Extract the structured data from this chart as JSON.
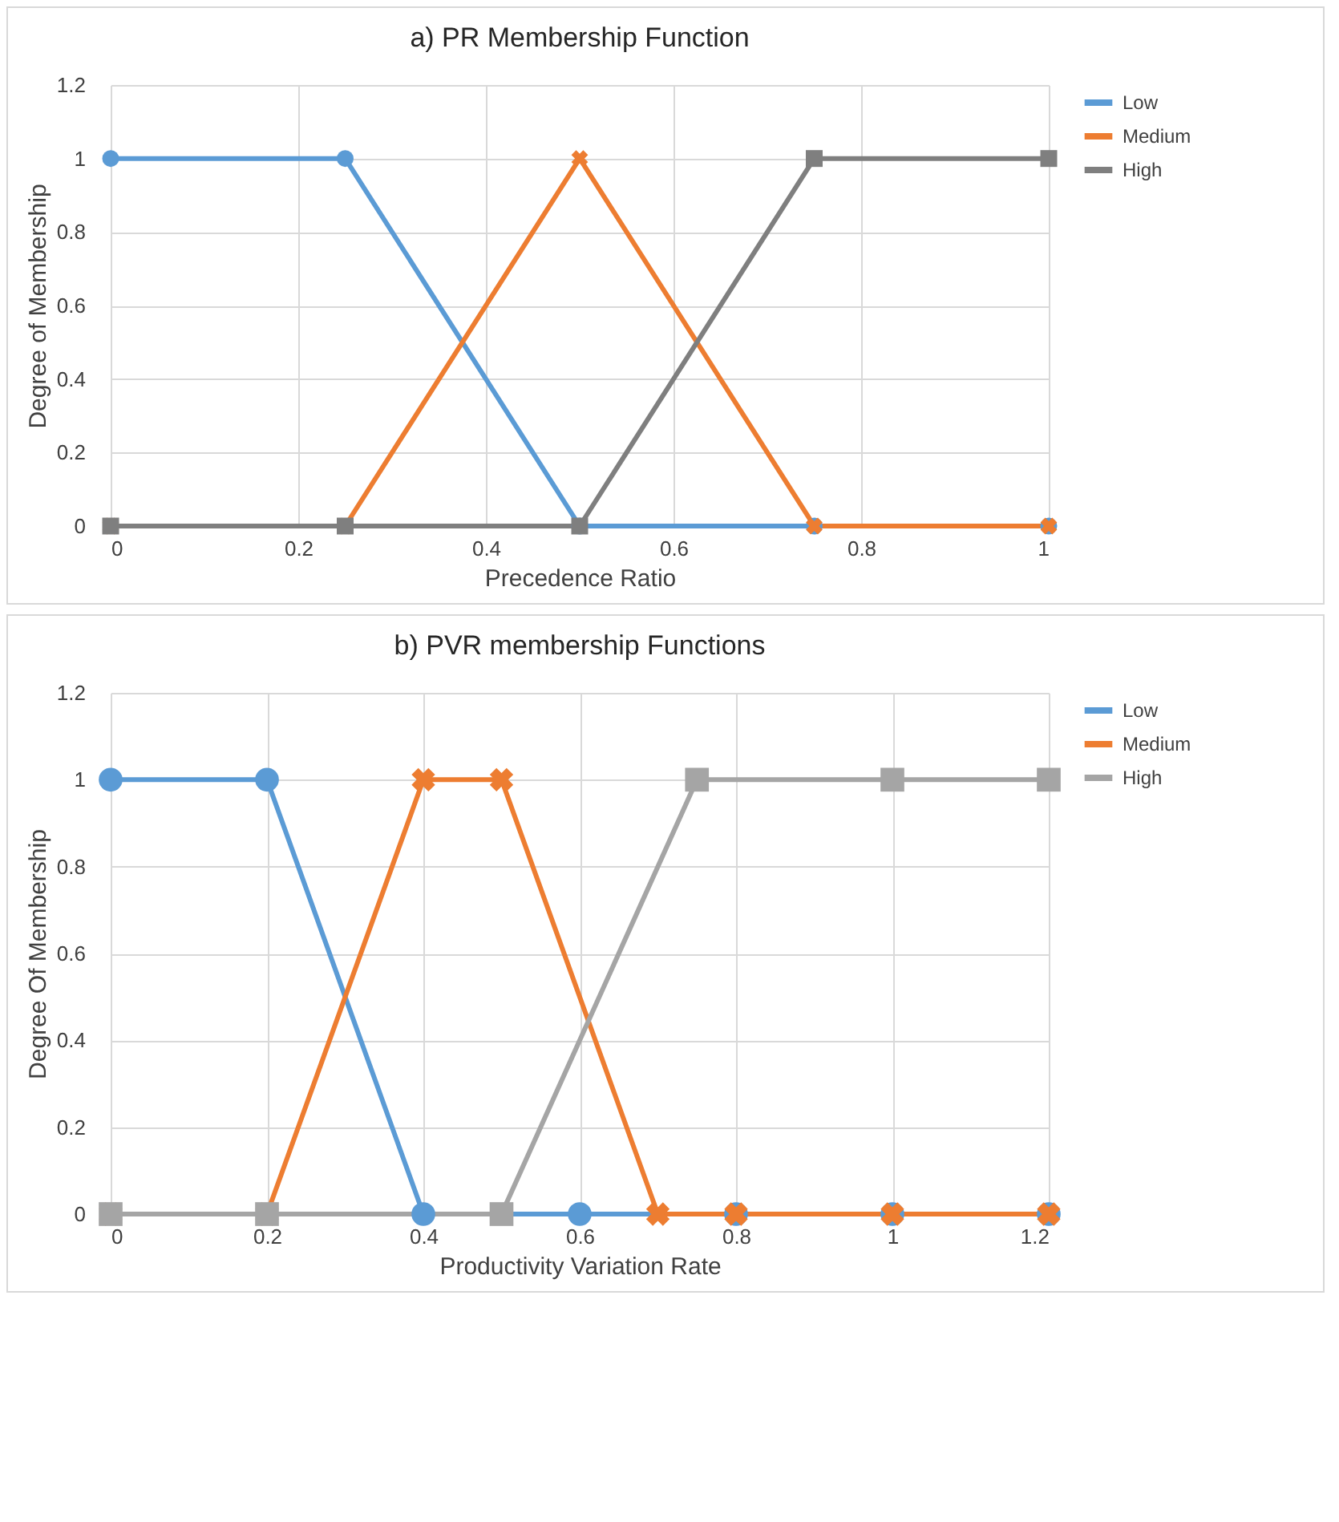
{
  "chart_data": [
    {
      "type": "line",
      "title": "a) PR Membership Function",
      "xlabel": "Precedence Ratio",
      "ylabel": "Degree  of Membership",
      "xlim": [
        0,
        1
      ],
      "xticks": [
        0,
        0.2,
        0.4,
        0.6,
        0.8,
        1
      ],
      "ylim": [
        0,
        1.2
      ],
      "yticks": [
        0,
        0.2,
        0.4,
        0.6,
        0.8,
        1,
        1.2
      ],
      "grid": true,
      "legend": "right",
      "series": [
        {
          "name": "Low",
          "color": "#5b9bd5",
          "marker": "circle",
          "x": [
            0,
            0.25,
            0.5,
            0.75,
            1
          ],
          "values": [
            1,
            1,
            0,
            0,
            0
          ]
        },
        {
          "name": "Medium",
          "color": "#ed7d31",
          "marker": "cross",
          "x": [
            0,
            0.25,
            0.5,
            0.75,
            1
          ],
          "values": [
            0,
            0,
            1,
            0,
            0
          ]
        },
        {
          "name": "High",
          "color": "#7f7f7f",
          "marker": "square",
          "x": [
            0,
            0.25,
            0.5,
            0.75,
            1
          ],
          "values": [
            0,
            0,
            0,
            1,
            1
          ]
        }
      ]
    },
    {
      "type": "line",
      "title": "b) PVR membership Functions",
      "xlabel": "Productivity  Variation Rate",
      "ylabel": "Degree Of Membership",
      "xlim": [
        0,
        1.2
      ],
      "xticks": [
        0,
        0.2,
        0.4,
        0.6,
        0.8,
        1,
        1.2
      ],
      "ylim": [
        0,
        1.2
      ],
      "yticks": [
        0,
        0.2,
        0.4,
        0.6,
        0.8,
        1,
        1.2
      ],
      "grid": true,
      "legend": "right",
      "series": [
        {
          "name": "Low",
          "color": "#5b9bd5",
          "marker": "circle",
          "x": [
            0,
            0.2,
            0.4,
            0.6,
            0.8,
            1,
            1.2
          ],
          "values": [
            1,
            1,
            0,
            0,
            0,
            0,
            0
          ]
        },
        {
          "name": "Medium",
          "color": "#ed7d31",
          "marker": "cross",
          "x": [
            0,
            0.2,
            0.4,
            0.5,
            0.7,
            0.8,
            1,
            1.2
          ],
          "values": [
            0,
            0,
            1,
            1,
            0,
            0,
            0,
            0
          ]
        },
        {
          "name": "High",
          "color": "#a5a5a5",
          "marker": "square",
          "x": [
            0,
            0.2,
            0.5,
            0.75,
            1,
            1.2
          ],
          "values": [
            0,
            0,
            0,
            1,
            1,
            1
          ]
        }
      ]
    }
  ]
}
